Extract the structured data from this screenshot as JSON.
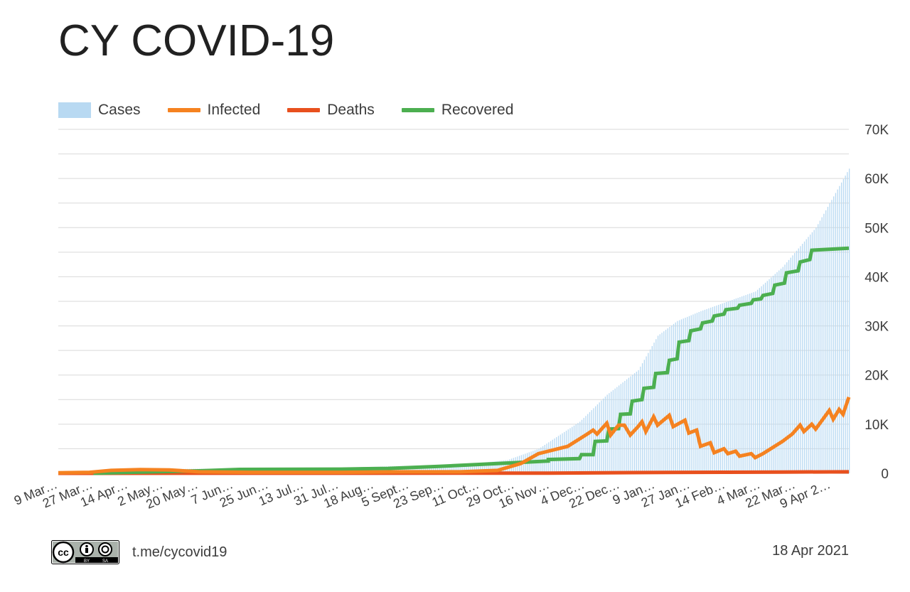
{
  "title": "CY COVID-19",
  "footer": {
    "link": "t.me/cycovid19",
    "date": "18 Apr 2021",
    "license": "cc BY SA"
  },
  "colors": {
    "cases": "#b8d9f2",
    "infected": "#f58220",
    "deaths": "#e8501e",
    "recovered": "#4caf50",
    "grid": "#d9d9d9"
  },
  "chart_data": {
    "type": "line",
    "title": "CY COVID-19",
    "legend_position": "top-left",
    "grid": true,
    "ylim": [
      0,
      70000
    ],
    "y_ticks": [
      0,
      10000,
      20000,
      30000,
      40000,
      50000,
      60000,
      70000
    ],
    "y_tick_labels": [
      "0",
      "10K",
      "20K",
      "30K",
      "40K",
      "50K",
      "60K",
      "70K"
    ],
    "y_axis_side": "right",
    "x_tick_labels": [
      "9 Mar…",
      "27 Mar…",
      "14 Apr…",
      "2 May…",
      "20 May…",
      "7 Jun…",
      "25 Jun…",
      "13 Jul…",
      "31 Jul…",
      "18 Aug…",
      "5 Sept…",
      "23 Sep…",
      "11 Oct…",
      "29 Oct…",
      "16 Nov…",
      "4 Dec…",
      "22 Dec…",
      "9 Jan…",
      "27 Jan…",
      "14 Feb…",
      "4 Mar…",
      "22 Mar…",
      "9 Apr 2…"
    ],
    "x_tick_dates": [
      "2020-03-09",
      "2020-03-27",
      "2020-04-14",
      "2020-05-02",
      "2020-05-20",
      "2020-06-07",
      "2020-06-25",
      "2020-07-13",
      "2020-07-31",
      "2020-08-18",
      "2020-09-05",
      "2020-09-23",
      "2020-10-11",
      "2020-10-29",
      "2020-11-16",
      "2020-12-04",
      "2020-12-22",
      "2021-01-09",
      "2021-01-27",
      "2021-02-14",
      "2021-03-04",
      "2021-03-22",
      "2021-04-09"
    ],
    "x_range": [
      "2020-03-09",
      "2021-04-18"
    ],
    "series": [
      {
        "name": "Cases",
        "type": "bar",
        "points": [
          [
            "2020-03-09",
            2
          ],
          [
            "2020-04-01",
            320
          ],
          [
            "2020-05-01",
            870
          ],
          [
            "2020-06-01",
            950
          ],
          [
            "2020-07-01",
            1000
          ],
          [
            "2020-08-01",
            1150
          ],
          [
            "2020-09-01",
            1500
          ],
          [
            "2020-10-01",
            1750
          ],
          [
            "2020-10-25",
            2700
          ],
          [
            "2020-11-10",
            5000
          ],
          [
            "2020-12-01",
            10500
          ],
          [
            "2020-12-15",
            16000
          ],
          [
            "2020-12-31",
            21000
          ],
          [
            "2021-01-10",
            28000
          ],
          [
            "2021-01-20",
            31000
          ],
          [
            "2021-02-01",
            33000
          ],
          [
            "2021-02-15",
            35000
          ],
          [
            "2021-03-01",
            37000
          ],
          [
            "2021-03-15",
            42000
          ],
          [
            "2021-04-01",
            50000
          ],
          [
            "2021-04-18",
            62000
          ]
        ]
      },
      {
        "name": "Infected",
        "type": "line",
        "points": [
          [
            "2020-03-09",
            100
          ],
          [
            "2020-03-25",
            200
          ],
          [
            "2020-04-05",
            600
          ],
          [
            "2020-04-20",
            750
          ],
          [
            "2020-05-05",
            700
          ],
          [
            "2020-05-20",
            300
          ],
          [
            "2020-06-15",
            200
          ],
          [
            "2020-08-01",
            200
          ],
          [
            "2020-09-01",
            300
          ],
          [
            "2020-10-01",
            300
          ],
          [
            "2020-10-20",
            600
          ],
          [
            "2020-11-01",
            2000
          ],
          [
            "2020-11-10",
            4000
          ],
          [
            "2020-11-25",
            5500
          ],
          [
            "2020-12-05",
            8000
          ],
          [
            "2020-12-08",
            8800
          ],
          [
            "2020-12-10",
            8000
          ],
          [
            "2020-12-15",
            10200
          ],
          [
            "2020-12-17",
            7800
          ],
          [
            "2020-12-21",
            9800
          ],
          [
            "2020-12-24",
            9800
          ],
          [
            "2020-12-27",
            7800
          ],
          [
            "2020-12-31",
            9500
          ],
          [
            "2021-01-02",
            10500
          ],
          [
            "2021-01-04",
            8500
          ],
          [
            "2021-01-08",
            11500
          ],
          [
            "2021-01-10",
            9800
          ],
          [
            "2021-01-16",
            11800
          ],
          [
            "2021-01-18",
            9500
          ],
          [
            "2021-01-24",
            10800
          ],
          [
            "2021-01-26",
            8200
          ],
          [
            "2021-01-30",
            8800
          ],
          [
            "2021-02-01",
            5500
          ],
          [
            "2021-02-06",
            6200
          ],
          [
            "2021-02-08",
            4200
          ],
          [
            "2021-02-13",
            5000
          ],
          [
            "2021-02-15",
            4000
          ],
          [
            "2021-02-19",
            4500
          ],
          [
            "2021-02-21",
            3500
          ],
          [
            "2021-02-27",
            4000
          ],
          [
            "2021-03-01",
            3200
          ],
          [
            "2021-03-05",
            4000
          ],
          [
            "2021-03-15",
            6500
          ],
          [
            "2021-03-20",
            8000
          ],
          [
            "2021-03-24",
            9800
          ],
          [
            "2021-03-26",
            8500
          ],
          [
            "2021-03-30",
            10000
          ],
          [
            "2021-04-01",
            9000
          ],
          [
            "2021-04-08",
            12800
          ],
          [
            "2021-04-10",
            11000
          ],
          [
            "2021-04-13",
            13000
          ],
          [
            "2021-04-15",
            12000
          ],
          [
            "2021-04-18",
            15500
          ]
        ]
      },
      {
        "name": "Deaths",
        "type": "line",
        "points": [
          [
            "2020-03-09",
            0
          ],
          [
            "2020-06-01",
            19
          ],
          [
            "2020-10-01",
            23
          ],
          [
            "2020-11-15",
            45
          ],
          [
            "2020-12-15",
            120
          ],
          [
            "2021-01-15",
            190
          ],
          [
            "2021-02-15",
            220
          ],
          [
            "2021-03-15",
            260
          ],
          [
            "2021-04-18",
            300
          ]
        ]
      },
      {
        "name": "Recovered",
        "type": "line",
        "points": [
          [
            "2020-03-27",
            0
          ],
          [
            "2020-04-14",
            200
          ],
          [
            "2020-05-20",
            500
          ],
          [
            "2020-06-10",
            800
          ],
          [
            "2020-08-01",
            850
          ],
          [
            "2020-08-25",
            1000
          ],
          [
            "2020-09-20",
            1400
          ],
          [
            "2020-10-20",
            2000
          ],
          [
            "2020-11-15",
            2500
          ],
          [
            "2020-11-15",
            2800
          ],
          [
            "2020-12-01",
            3000
          ],
          [
            "2020-12-02",
            3800
          ],
          [
            "2020-12-08",
            3800
          ],
          [
            "2020-12-09",
            6500
          ],
          [
            "2020-12-15",
            6600
          ],
          [
            "2020-12-16",
            9000
          ],
          [
            "2020-12-21",
            9100
          ],
          [
            "2020-12-22",
            12000
          ],
          [
            "2020-12-27",
            12100
          ],
          [
            "2020-12-28",
            14700
          ],
          [
            "2021-01-02",
            15000
          ],
          [
            "2021-01-03",
            17300
          ],
          [
            "2021-01-08",
            17500
          ],
          [
            "2021-01-09",
            20300
          ],
          [
            "2021-01-15",
            20500
          ],
          [
            "2021-01-16",
            23000
          ],
          [
            "2021-01-20",
            23300
          ],
          [
            "2021-01-21",
            26700
          ],
          [
            "2021-01-26",
            27000
          ],
          [
            "2021-01-27",
            29000
          ],
          [
            "2021-02-01",
            29400
          ],
          [
            "2021-02-02",
            30600
          ],
          [
            "2021-02-07",
            31000
          ],
          [
            "2021-02-08",
            32000
          ],
          [
            "2021-02-13",
            32400
          ],
          [
            "2021-02-14",
            33300
          ],
          [
            "2021-02-20",
            33600
          ],
          [
            "2021-02-21",
            34200
          ],
          [
            "2021-02-27",
            34600
          ],
          [
            "2021-02-28",
            35300
          ],
          [
            "2021-03-04",
            35500
          ],
          [
            "2021-03-05",
            36200
          ],
          [
            "2021-03-10",
            36600
          ],
          [
            "2021-03-11",
            38300
          ],
          [
            "2021-03-16",
            38700
          ],
          [
            "2021-03-17",
            40800
          ],
          [
            "2021-03-23",
            41200
          ],
          [
            "2021-03-24",
            43000
          ],
          [
            "2021-03-29",
            43500
          ],
          [
            "2021-03-30",
            45400
          ],
          [
            "2021-04-18",
            45800
          ]
        ]
      }
    ]
  }
}
